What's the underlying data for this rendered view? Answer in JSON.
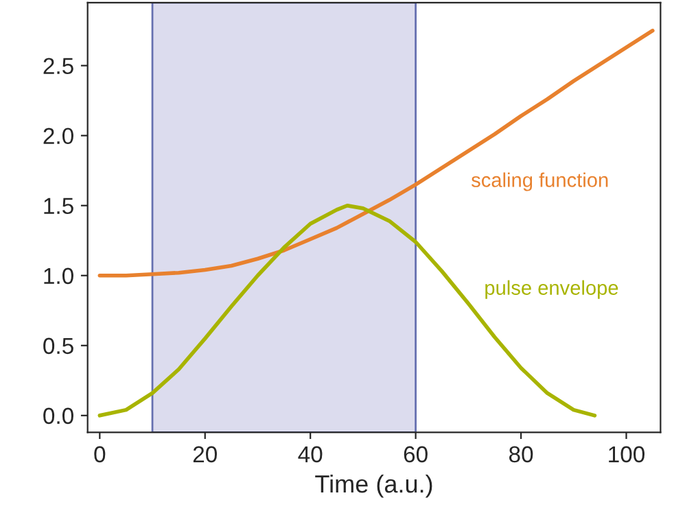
{
  "chart_data": {
    "type": "line",
    "xlabel": "Time (a.u.)",
    "xlim": [
      -2.3,
      106.5
    ],
    "ylim": [
      -0.12,
      2.95
    ],
    "xticks": [
      0,
      20,
      40,
      60,
      80,
      100
    ],
    "yticks": [
      {
        "value": 0,
        "label": "0.0"
      },
      {
        "value": 0.5,
        "label": "0.5"
      },
      {
        "value": 1,
        "label": "1.0"
      },
      {
        "value": 1.5,
        "label": "1.5"
      },
      {
        "value": 2,
        "label": "2.0"
      },
      {
        "value": 2.5,
        "label": "2.5"
      }
    ],
    "bands": [
      {
        "axis": "x",
        "from": 10,
        "to": 60,
        "color": "#dcdcee"
      }
    ],
    "series": [
      {
        "name": "scaling function",
        "color": "#e8812e",
        "x": [
          0,
          5,
          10,
          15,
          20,
          25,
          30,
          35,
          40,
          45,
          50,
          55,
          60,
          65,
          70,
          75,
          80,
          85,
          90,
          95,
          100,
          105
        ],
        "values": [
          1.0,
          1.0,
          1.01,
          1.02,
          1.04,
          1.07,
          1.12,
          1.18,
          1.26,
          1.34,
          1.44,
          1.54,
          1.65,
          1.77,
          1.89,
          2.01,
          2.14,
          2.26,
          2.39,
          2.51,
          2.63,
          2.75
        ]
      },
      {
        "name": "pulse envelope",
        "color": "#a8b400",
        "x": [
          0,
          5,
          10,
          15,
          20,
          25,
          30,
          35,
          40,
          45,
          47,
          50,
          55,
          60,
          65,
          70,
          75,
          80,
          85,
          90,
          94
        ],
        "values": [
          0,
          0.04,
          0.16,
          0.33,
          0.55,
          0.78,
          1.0,
          1.2,
          1.37,
          1.47,
          1.5,
          1.48,
          1.39,
          1.24,
          1.03,
          0.8,
          0.56,
          0.34,
          0.16,
          0.04,
          0
        ]
      }
    ],
    "legend": false,
    "grid": false
  }
}
